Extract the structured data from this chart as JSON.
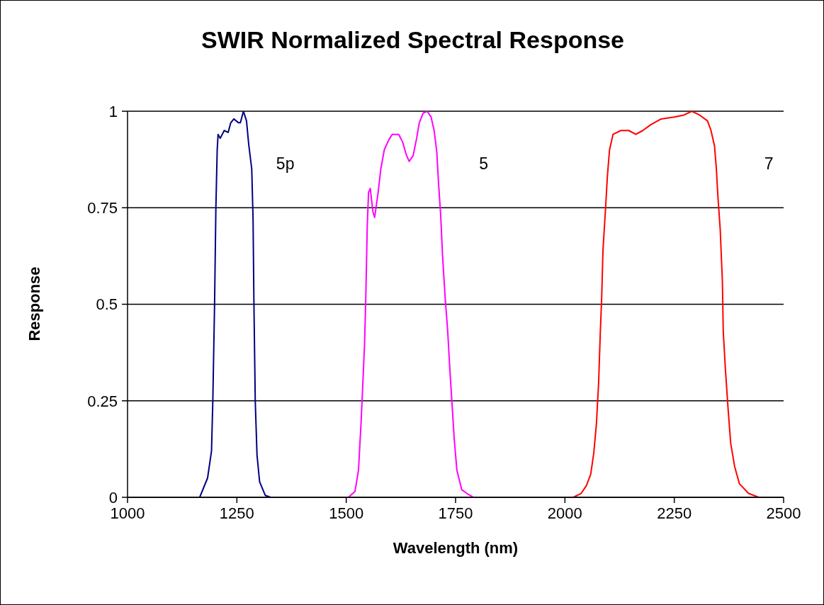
{
  "chart_data": {
    "type": "line",
    "title": "SWIR Normalized Spectral Response",
    "xlabel": "Wavelength (nm)",
    "ylabel": "Response",
    "xlim": [
      1000,
      2500
    ],
    "xticks": [
      1000,
      1250,
      1500,
      1750,
      2000,
      2250,
      2500
    ],
    "ylim": [
      0,
      1
    ],
    "yticks": [
      0,
      0.25,
      0.5,
      0.75,
      1
    ],
    "grid": "y",
    "legend": false,
    "marker": "none",
    "line_style": "solid",
    "series": [
      {
        "name": "5p",
        "color": "#000080",
        "x": [
          1165,
          1183,
          1192,
          1195,
          1199,
          1202,
          1205,
          1207,
          1212,
          1221,
          1230,
          1236,
          1243,
          1254,
          1258,
          1265,
          1272,
          1277,
          1284,
          1287,
          1289,
          1292,
          1296,
          1302,
          1315,
          1327
        ],
        "values": [
          0,
          0.05,
          0.12,
          0.25,
          0.5,
          0.75,
          0.9,
          0.94,
          0.93,
          0.95,
          0.945,
          0.97,
          0.98,
          0.97,
          0.97,
          1,
          0.975,
          0.915,
          0.85,
          0.72,
          0.5,
          0.25,
          0.11,
          0.04,
          0.005,
          0
        ]
      },
      {
        "name": "5",
        "color": "#ff00ff",
        "x": [
          1505,
          1520,
          1528,
          1534,
          1538,
          1542,
          1545,
          1548,
          1551,
          1555,
          1561,
          1565,
          1573,
          1579,
          1587,
          1597,
          1605,
          1620,
          1629,
          1638,
          1644,
          1653,
          1661,
          1667,
          1676,
          1685,
          1694,
          1701,
          1707,
          1711,
          1716,
          1720,
          1726,
          1732,
          1737,
          1742,
          1747,
          1753,
          1764,
          1776,
          1791
        ],
        "values": [
          0,
          0.015,
          0.07,
          0.195,
          0.295,
          0.4,
          0.53,
          0.7,
          0.79,
          0.8,
          0.74,
          0.725,
          0.79,
          0.85,
          0.9,
          0.925,
          0.94,
          0.94,
          0.92,
          0.885,
          0.87,
          0.885,
          0.93,
          0.97,
          0.995,
          1,
          0.985,
          0.95,
          0.895,
          0.815,
          0.73,
          0.63,
          0.52,
          0.43,
          0.33,
          0.24,
          0.15,
          0.07,
          0.02,
          0.01,
          0
        ]
      },
      {
        "name": "7",
        "color": "#ff0000",
        "x": [
          2019,
          2037,
          2049,
          2059,
          2066,
          2072,
          2077,
          2081,
          2084,
          2087,
          2093,
          2097,
          2102,
          2110,
          2128,
          2146,
          2162,
          2178,
          2196,
          2220,
          2249,
          2272,
          2290,
          2308,
          2326,
          2334,
          2342,
          2346,
          2350,
          2355,
          2360,
          2362,
          2367,
          2373,
          2379,
          2388,
          2399,
          2420,
          2443
        ],
        "values": [
          0,
          0.01,
          0.03,
          0.06,
          0.115,
          0.19,
          0.295,
          0.43,
          0.515,
          0.64,
          0.75,
          0.83,
          0.9,
          0.94,
          0.95,
          0.95,
          0.94,
          0.95,
          0.965,
          0.98,
          0.985,
          0.99,
          1,
          0.99,
          0.975,
          0.95,
          0.91,
          0.855,
          0.775,
          0.695,
          0.56,
          0.43,
          0.33,
          0.23,
          0.14,
          0.08,
          0.035,
          0.01,
          0
        ]
      }
    ]
  }
}
